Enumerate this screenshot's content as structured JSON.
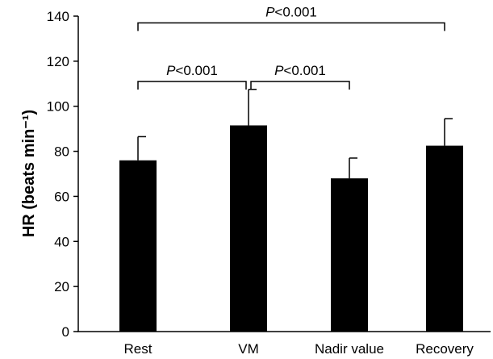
{
  "chart_data": {
    "type": "bar",
    "ylabel": "HR (beats min⁻¹)",
    "xlabel": "",
    "ylim": [
      0,
      140
    ],
    "yticks": [
      0,
      20,
      40,
      60,
      80,
      100,
      120,
      140
    ],
    "categories": [
      "Rest",
      "VM",
      "Nadir value",
      "Recovery"
    ],
    "values": [
      76,
      91.5,
      68,
      82.5
    ],
    "errors": [
      10.5,
      16,
      9,
      12
    ],
    "bar_color": "#000000",
    "grid": false,
    "significance": [
      {
        "from": 0,
        "to": 3,
        "p_symbol": "P",
        "p_text": "<0.001",
        "y": 137
      },
      {
        "from": 0,
        "to": 1,
        "p_symbol": "P",
        "p_text": "<0.001",
        "y": 111
      },
      {
        "from": 1,
        "to": 2,
        "p_symbol": "P",
        "p_text": "<0.001",
        "y": 111
      }
    ]
  }
}
